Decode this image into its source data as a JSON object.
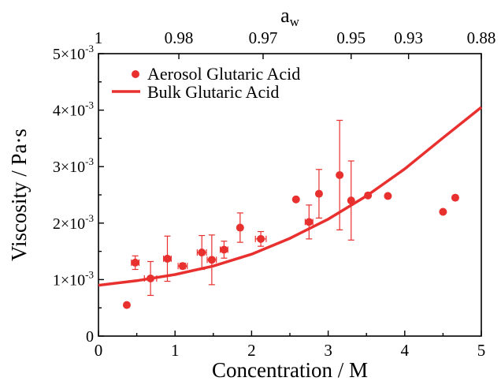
{
  "chart_data": {
    "type": "scatter",
    "xlabel": "Concentration / M",
    "ylabel": "Viscosity / Pa·s",
    "top_axis_label_main": "a",
    "top_axis_label_sub": "w",
    "xlim": [
      0,
      5
    ],
    "ylim": [
      0,
      0.005
    ],
    "x_ticks": [
      0,
      1,
      2,
      3,
      4,
      5
    ],
    "x_tick_labels": [
      "0",
      "1",
      "2",
      "3",
      "4",
      "5"
    ],
    "y_ticks": [
      0,
      0.001,
      0.002,
      0.003,
      0.004,
      0.005
    ],
    "y_tick_labels": [
      {
        "mantissa": "0",
        "exp": ""
      },
      {
        "mantissa": "1×10",
        "exp": "-3"
      },
      {
        "mantissa": "2×10",
        "exp": "-3"
      },
      {
        "mantissa": "3×10",
        "exp": "-3"
      },
      {
        "mantissa": "4×10",
        "exp": "-3"
      },
      {
        "mantissa": "5×10",
        "exp": "-3"
      }
    ],
    "top_ticks": [
      {
        "conc": 0.0,
        "label": "1"
      },
      {
        "conc": 1.05,
        "label": "0.98"
      },
      {
        "conc": 2.15,
        "label": "0.97"
      },
      {
        "conc": 3.3,
        "label": "0.95"
      },
      {
        "conc": 4.05,
        "label": "0.93"
      },
      {
        "conc": 5.0,
        "label": "0.88"
      }
    ],
    "grid": false,
    "legend_position": "top-left",
    "color": "#e8302f",
    "series": [
      {
        "name": "Aerosol Glutaric Acid",
        "kind": "points",
        "points": [
          {
            "x": 0.37,
            "y": 0.00055,
            "xerr": 0,
            "yerr": 0
          },
          {
            "x": 0.48,
            "y": 0.0013,
            "xerr": 0.05,
            "yerr": 0.00012
          },
          {
            "x": 0.68,
            "y": 0.00102,
            "xerr": 0.08,
            "yerr": 0.0003
          },
          {
            "x": 0.9,
            "y": 0.00137,
            "xerr": 0.05,
            "yerr": 0.0004
          },
          {
            "x": 1.1,
            "y": 0.00124,
            "xerr": 0.06,
            "yerr": 5e-05
          },
          {
            "x": 1.35,
            "y": 0.00148,
            "xerr": 0.06,
            "yerr": 0.0003
          },
          {
            "x": 1.48,
            "y": 0.00135,
            "xerr": 0.06,
            "yerr": 0.00044
          },
          {
            "x": 1.64,
            "y": 0.00153,
            "xerr": 0.05,
            "yerr": 0.00015
          },
          {
            "x": 1.85,
            "y": 0.00192,
            "xerr": 0,
            "yerr": 0.00026
          },
          {
            "x": 2.12,
            "y": 0.00172,
            "xerr": 0.07,
            "yerr": 0.00013
          },
          {
            "x": 2.58,
            "y": 0.00242,
            "xerr": 0,
            "yerr": 0
          },
          {
            "x": 2.75,
            "y": 0.00202,
            "xerr": 0.05,
            "yerr": 0.0003
          },
          {
            "x": 2.88,
            "y": 0.00252,
            "xerr": 0,
            "yerr": 0.00043
          },
          {
            "x": 3.15,
            "y": 0.00285,
            "xerr": 0,
            "yerr": 0.00097
          },
          {
            "x": 3.3,
            "y": 0.0024,
            "xerr": 0,
            "yerr": 0.0007
          },
          {
            "x": 3.52,
            "y": 0.00249,
            "xerr": 0,
            "yerr": 0
          },
          {
            "x": 3.78,
            "y": 0.00248,
            "xerr": 0,
            "yerr": 0
          },
          {
            "x": 4.5,
            "y": 0.0022,
            "xerr": 0,
            "yerr": 0
          },
          {
            "x": 4.66,
            "y": 0.00245,
            "xerr": 0,
            "yerr": 0
          }
        ]
      },
      {
        "name": "Bulk Glutaric Acid",
        "kind": "line",
        "x": [
          0,
          0.5,
          1,
          1.5,
          2,
          2.5,
          3,
          3.5,
          4,
          4.5,
          5
        ],
        "y": [
          0.0009,
          0.00098,
          0.00109,
          0.00124,
          0.00145,
          0.00173,
          0.00207,
          0.00248,
          0.00296,
          0.00351,
          0.00405
        ]
      }
    ]
  }
}
